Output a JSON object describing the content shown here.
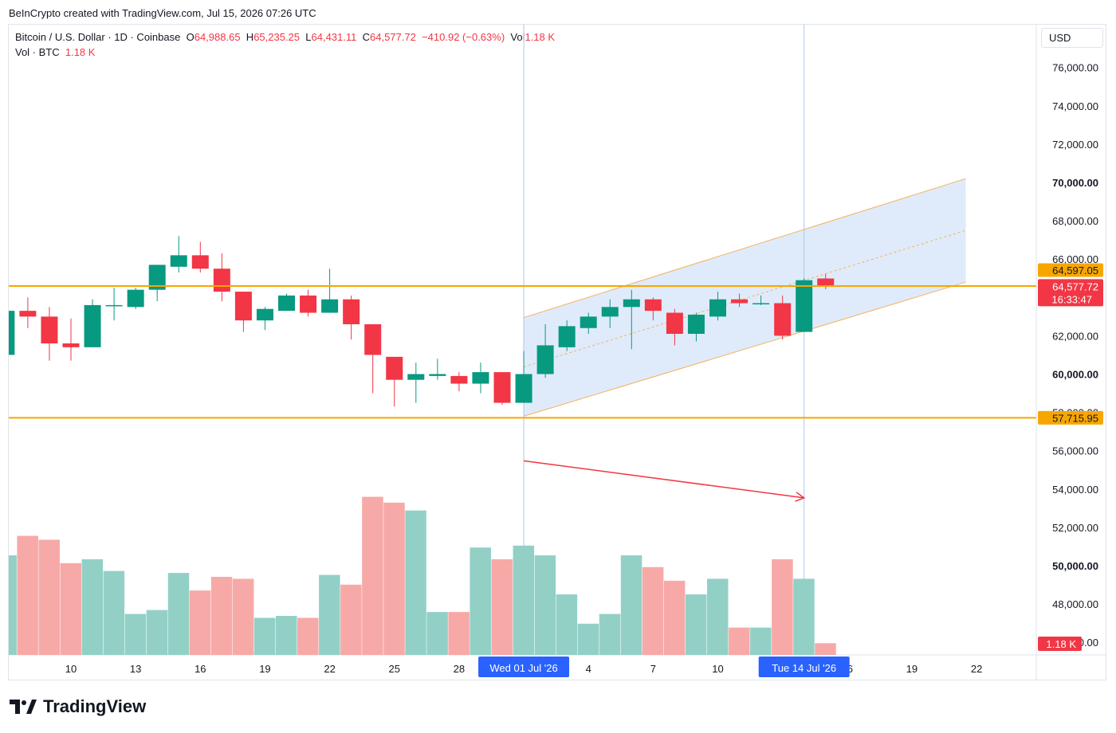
{
  "header": {
    "credit": "BeInCrypto created with TradingView.com, Jul 15, 2026 07:26 UTC"
  },
  "legend": {
    "symbol": "Bitcoin / U.S. Dollar · 1D · Coinbase",
    "open_label": "O",
    "open": "64,988.65",
    "high_label": "H",
    "high": "65,235.25",
    "low_label": "L",
    "low": "64,431.11",
    "close_label": "C",
    "close": "64,577.72",
    "change": "−410.92 (−0.63%)",
    "vol_label": "Vol",
    "vol": "1.18 K",
    "line2_label": "Vol · BTC",
    "line2_value": "1.18 K"
  },
  "currency": "USD",
  "brand": {
    "name": "TradingView",
    "logo_icon": "tradingview-logo-icon"
  },
  "colors": {
    "up": "#089981",
    "down": "#f23645",
    "up_volume": "#92d0c6",
    "down_volume": "#f7a9a7",
    "level_line": "#f7a600",
    "channel_fill": "#dbe9fb",
    "channel_edge": "#f5b25a",
    "crosshair": "#a9c6ea",
    "date_badge": "#2962ff",
    "arrow": "#f23645"
  },
  "chart_data": {
    "type": "candlestick",
    "title": "Bitcoin / U.S. Dollar · 1D · Coinbase",
    "y_ticks": [
      "76,000.00",
      "74,000.00",
      "72,000.00",
      "70,000.00",
      "68,000.00",
      "66,000.00",
      "64,000.00",
      "62,000.00",
      "60,000.00",
      "58,000.00",
      "56,000.00",
      "54,000.00",
      "52,000.00",
      "50,000.00",
      "48,000.00",
      "46,000.00"
    ],
    "y_ticks_bold": [
      "70,000.00",
      "60,000.00",
      "50,000.00"
    ],
    "ylim": [
      45300,
      78300
    ],
    "x_ticks": [
      {
        "day": 10,
        "label": "10"
      },
      {
        "day": 13,
        "label": "13"
      },
      {
        "day": 16,
        "label": "16"
      },
      {
        "day": 19,
        "label": "19"
      },
      {
        "day": 22,
        "label": "22"
      },
      {
        "day": 25,
        "label": "25"
      },
      {
        "day": 28,
        "label": "28"
      },
      {
        "day": 34,
        "label": "4"
      },
      {
        "day": 37,
        "label": "7"
      },
      {
        "day": 40,
        "label": "10"
      },
      {
        "day": 46,
        "label": "16"
      },
      {
        "day": 49,
        "label": "19"
      },
      {
        "day": 52,
        "label": "22"
      },
      {
        "day": 55,
        "label": "25"
      }
    ],
    "x_badges": [
      {
        "day": 31,
        "label": "Wed 01 Jul '26"
      },
      {
        "day": 44,
        "label": "Tue 14 Jul '26"
      }
    ],
    "candles": [
      {
        "day": 7,
        "o": 61000,
        "h": 63300,
        "l": 60800,
        "c": 63300
      },
      {
        "day": 8,
        "o": 63300,
        "h": 64000,
        "l": 62400,
        "c": 63000
      },
      {
        "day": 9,
        "o": 63000,
        "h": 63500,
        "l": 60700,
        "c": 61600
      },
      {
        "day": 10,
        "o": 61600,
        "h": 62900,
        "l": 60700,
        "c": 61400
      },
      {
        "day": 11,
        "o": 61400,
        "h": 63900,
        "l": 61400,
        "c": 63600
      },
      {
        "day": 12,
        "o": 63600,
        "h": 64500,
        "l": 62800,
        "c": 63600
      },
      {
        "day": 13,
        "o": 63500,
        "h": 64500,
        "l": 63400,
        "c": 64400
      },
      {
        "day": 14,
        "o": 64400,
        "h": 65700,
        "l": 63800,
        "c": 65700
      },
      {
        "day": 15,
        "o": 65600,
        "h": 67200,
        "l": 65300,
        "c": 66200
      },
      {
        "day": 16,
        "o": 66200,
        "h": 66900,
        "l": 65300,
        "c": 65500
      },
      {
        "day": 17,
        "o": 65500,
        "h": 66300,
        "l": 63800,
        "c": 64300
      },
      {
        "day": 18,
        "o": 64300,
        "h": 64300,
        "l": 62200,
        "c": 62800
      },
      {
        "day": 19,
        "o": 62800,
        "h": 63500,
        "l": 62300,
        "c": 63400
      },
      {
        "day": 20,
        "o": 63300,
        "h": 64200,
        "l": 63300,
        "c": 64100
      },
      {
        "day": 21,
        "o": 64100,
        "h": 64400,
        "l": 63000,
        "c": 63200
      },
      {
        "day": 22,
        "o": 63200,
        "h": 65500,
        "l": 63200,
        "c": 63900
      },
      {
        "day": 23,
        "o": 63900,
        "h": 64100,
        "l": 61800,
        "c": 62600
      },
      {
        "day": 24,
        "o": 62600,
        "h": 62600,
        "l": 59000,
        "c": 61000
      },
      {
        "day": 25,
        "o": 60900,
        "h": 60900,
        "l": 58300,
        "c": 59700
      },
      {
        "day": 26,
        "o": 59700,
        "h": 60600,
        "l": 58500,
        "c": 60000
      },
      {
        "day": 27,
        "o": 59900,
        "h": 60800,
        "l": 59700,
        "c": 60000
      },
      {
        "day": 28,
        "o": 59900,
        "h": 60100,
        "l": 59100,
        "c": 59500
      },
      {
        "day": 29,
        "o": 59500,
        "h": 60600,
        "l": 59000,
        "c": 60100
      },
      {
        "day": 30,
        "o": 60100,
        "h": 60100,
        "l": 58400,
        "c": 58500
      },
      {
        "day": 31,
        "o": 58500,
        "h": 61200,
        "l": 58500,
        "c": 60000
      },
      {
        "day": 32,
        "o": 60000,
        "h": 62600,
        "l": 59800,
        "c": 61500
      },
      {
        "day": 33,
        "o": 61400,
        "h": 62800,
        "l": 61200,
        "c": 62500
      },
      {
        "day": 34,
        "o": 62400,
        "h": 63200,
        "l": 62100,
        "c": 63000
      },
      {
        "day": 35,
        "o": 63000,
        "h": 63900,
        "l": 62400,
        "c": 63500
      },
      {
        "day": 36,
        "o": 63500,
        "h": 64400,
        "l": 61300,
        "c": 63900
      },
      {
        "day": 37,
        "o": 63900,
        "h": 64000,
        "l": 62800,
        "c": 63300
      },
      {
        "day": 38,
        "o": 63200,
        "h": 63400,
        "l": 61500,
        "c": 62100
      },
      {
        "day": 39,
        "o": 62100,
        "h": 63200,
        "l": 61700,
        "c": 63100
      },
      {
        "day": 40,
        "o": 63000,
        "h": 64300,
        "l": 62800,
        "c": 63900
      },
      {
        "day": 41,
        "o": 63900,
        "h": 64200,
        "l": 63500,
        "c": 63700
      },
      {
        "day": 42,
        "o": 63700,
        "h": 64100,
        "l": 63600,
        "c": 63700
      },
      {
        "day": 43,
        "o": 63700,
        "h": 64100,
        "l": 61800,
        "c": 62000
      },
      {
        "day": 44,
        "o": 62200,
        "h": 65000,
        "l": 62200,
        "c": 64900
      },
      {
        "day": 45,
        "o": 64988.65,
        "h": 65235.25,
        "l": 64431.11,
        "c": 64577.72
      }
    ],
    "volume_height_fraction": [
      0.51,
      0.61,
      0.59,
      0.47,
      0.49,
      0.43,
      0.21,
      0.23,
      0.42,
      0.33,
      0.4,
      0.39,
      0.19,
      0.2,
      0.19,
      0.41,
      0.36,
      0.81,
      0.78,
      0.74,
      0.22,
      0.22,
      0.55,
      0.49,
      0.56,
      0.51,
      0.31,
      0.16,
      0.21,
      0.51,
      0.45,
      0.38,
      0.31,
      0.39,
      0.14,
      0.14,
      0.49,
      0.39,
      0.06
    ],
    "levels": [
      {
        "value": 64597.05,
        "label": "64,597.05",
        "badge": "#f7a600"
      },
      {
        "value": 57715.95,
        "label": "57,715.95",
        "badge": "#f7a600"
      }
    ],
    "last_price": {
      "value": 64577.72,
      "label": "64,577.72",
      "countdown": "16:33:47"
    },
    "volume_badge": "1.18 K",
    "channel": {
      "upper": [
        {
          "day": 31,
          "value": 62950
        },
        {
          "day": 51.5,
          "value": 70200
        }
      ],
      "lower": [
        {
          "day": 31,
          "value": 57800
        },
        {
          "day": 51.5,
          "value": 64800
        }
      ]
    },
    "arrow_volume_fraction": {
      "from": [
        31,
        0.77
      ],
      "to": [
        44,
        0.58
      ]
    }
  }
}
